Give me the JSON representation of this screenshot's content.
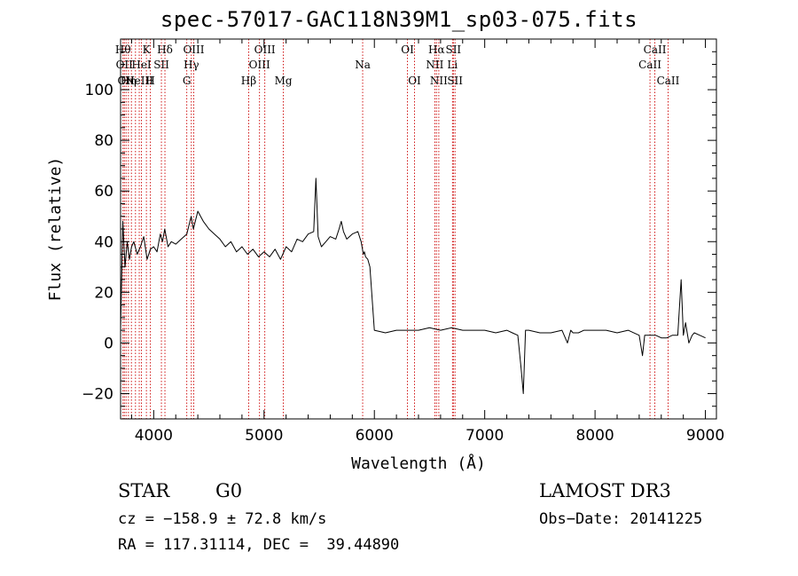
{
  "chart_data": {
    "type": "line",
    "title": "spec-57017-GAC118N39M1_sp03-075.fits",
    "xlabel": "Wavelength (Å)",
    "ylabel": "Flux (relative)",
    "xlim": [
      3700,
      9100
    ],
    "ylim": [
      -30,
      120
    ],
    "xticks": [
      4000,
      5000,
      6000,
      7000,
      8000,
      9000
    ],
    "yticks": [
      -20,
      0,
      20,
      40,
      60,
      80,
      100
    ],
    "grid": false,
    "line_color": "#000000",
    "marker_color": "#cc0000",
    "series": [
      {
        "x": [
          3700,
          3720,
          3740,
          3760,
          3780,
          3800,
          3820,
          3850,
          3880,
          3910,
          3940,
          3970,
          4000,
          4030,
          4060,
          4080,
          4100,
          4130,
          4160,
          4200,
          4250,
          4300,
          4340,
          4360,
          4400,
          4450,
          4500,
          4550,
          4600,
          4650,
          4700,
          4750,
          4800,
          4850,
          4900,
          4950,
          5000,
          5050,
          5100,
          5150,
          5200,
          5250,
          5300,
          5350,
          5400,
          5450,
          5470,
          5490,
          5520,
          5560,
          5600,
          5650,
          5680,
          5700,
          5720,
          5750,
          5800,
          5850,
          5880,
          5900,
          5910,
          5920,
          5940,
          5960,
          6000,
          6100,
          6200,
          6300,
          6400,
          6500,
          6600,
          6700,
          6800,
          6900,
          7000,
          7100,
          7200,
          7250,
          7300,
          7330,
          7350,
          7370,
          7400,
          7500,
          7600,
          7700,
          7750,
          7780,
          7800,
          7850,
          7900,
          8000,
          8100,
          8200,
          8300,
          8400,
          8430,
          8450,
          8500,
          8550,
          8600,
          8650,
          8700,
          8750,
          8780,
          8800,
          8820,
          8850,
          8880,
          8900,
          8950,
          9000
        ],
        "y": [
          5,
          48,
          30,
          40,
          33,
          38,
          40,
          35,
          38,
          42,
          33,
          37,
          38,
          36,
          43,
          40,
          45,
          38,
          40,
          39,
          41,
          43,
          50,
          45,
          52,
          48,
          45,
          43,
          41,
          38,
          40,
          36,
          38,
          35,
          37,
          34,
          36,
          34,
          37,
          33,
          38,
          36,
          41,
          40,
          43,
          44,
          65,
          42,
          38,
          40,
          42,
          41,
          45,
          48,
          44,
          41,
          43,
          44,
          40,
          35,
          36,
          34,
          33,
          30,
          5,
          4,
          5,
          5,
          5,
          6,
          5,
          6,
          5,
          5,
          5,
          4,
          5,
          4,
          3,
          -10,
          -20,
          5,
          5,
          4,
          4,
          5,
          0,
          5,
          4,
          4,
          5,
          5,
          5,
          4,
          5,
          3,
          -5,
          3,
          3,
          3,
          2,
          2,
          3,
          3,
          25,
          3,
          8,
          0,
          3,
          4,
          3,
          2
        ]
      }
    ],
    "lines": [
      {
        "x": 3722,
        "labels": [
          "Hθ",
          "",
          ""
        ]
      },
      {
        "x": 3734,
        "labels": [
          "",
          "OII",
          ""
        ]
      },
      {
        "x": 3750,
        "labels": [
          "",
          "",
          "OII"
        ]
      },
      {
        "x": 3771,
        "labels": [
          "",
          "",
          "Hη"
        ]
      },
      {
        "x": 3798,
        "labels": [
          "",
          "",
          ""
        ]
      },
      {
        "x": 3835,
        "labels": [
          "",
          "",
          ""
        ]
      },
      {
        "x": 3869,
        "labels": [
          "",
          "",
          "NeIII"
        ]
      },
      {
        "x": 3889,
        "labels": [
          "",
          "HeI",
          ""
        ]
      },
      {
        "x": 3934,
        "labels": [
          "K",
          "",
          ""
        ]
      },
      {
        "x": 3970,
        "labels": [
          "",
          "",
          "H"
        ]
      },
      {
        "x": 4070,
        "labels": [
          "",
          "SII",
          ""
        ]
      },
      {
        "x": 4102,
        "labels": [
          "Hδ",
          "",
          ""
        ]
      },
      {
        "x": 4300,
        "labels": [
          "",
          "",
          "G"
        ]
      },
      {
        "x": 4341,
        "labels": [
          "",
          "Hγ",
          ""
        ]
      },
      {
        "x": 4363,
        "labels": [
          "OIII",
          "",
          ""
        ]
      },
      {
        "x": 4861,
        "labels": [
          "",
          "",
          "Hβ"
        ]
      },
      {
        "x": 4959,
        "labels": [
          "",
          "OIII",
          ""
        ]
      },
      {
        "x": 5007,
        "labels": [
          "OIII",
          "",
          ""
        ]
      },
      {
        "x": 5175,
        "labels": [
          "",
          "",
          "Mg"
        ]
      },
      {
        "x": 5894,
        "labels": [
          "",
          "Na",
          ""
        ]
      },
      {
        "x": 6300,
        "labels": [
          "OI",
          "",
          ""
        ]
      },
      {
        "x": 6364,
        "labels": [
          "",
          "",
          "OI"
        ]
      },
      {
        "x": 6548,
        "labels": [
          "",
          "NII",
          ""
        ]
      },
      {
        "x": 6563,
        "labels": [
          "Hα",
          "",
          ""
        ]
      },
      {
        "x": 6584,
        "labels": [
          "",
          "",
          "NII"
        ]
      },
      {
        "x": 6708,
        "labels": [
          "",
          "Li",
          ""
        ]
      },
      {
        "x": 6716,
        "labels": [
          "SII",
          "",
          ""
        ]
      },
      {
        "x": 6731,
        "labels": [
          "",
          "",
          "SII"
        ]
      },
      {
        "x": 8498,
        "labels": [
          "",
          "CaII",
          ""
        ]
      },
      {
        "x": 8542,
        "labels": [
          "CaII",
          "",
          ""
        ]
      },
      {
        "x": 8662,
        "labels": [
          "",
          "",
          "CaII"
        ]
      }
    ]
  },
  "info": {
    "class": "STAR",
    "subclass": "G0",
    "survey": "LAMOST DR3",
    "cz": "cz = −158.9 ± 72.8 km/s",
    "obs_date": "Obs−Date: 20141225",
    "radec": "RA = 117.31114, DEC =  39.44890"
  }
}
